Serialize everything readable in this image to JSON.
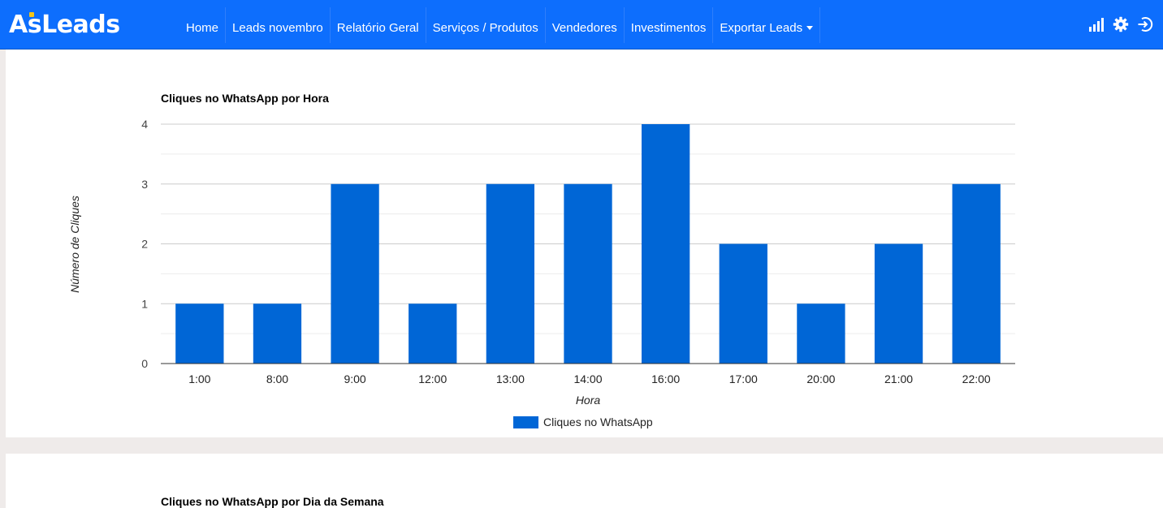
{
  "navbar": {
    "brand": "AsLeads",
    "items": [
      {
        "label": "Home"
      },
      {
        "label": "Leads novembro"
      },
      {
        "label": "Relatório Geral"
      },
      {
        "label": "Serviços / Produtos"
      },
      {
        "label": "Vendedores"
      },
      {
        "label": "Investimentos"
      },
      {
        "label": "Exportar Leads"
      }
    ],
    "icons": [
      "signal-icon",
      "gear-icon",
      "logout-icon"
    ]
  },
  "colors": {
    "navbar": "#0d6efd",
    "bar": "#0066d6",
    "page": "#efebea"
  },
  "chart_data": [
    {
      "type": "bar",
      "title": "Cliques no WhatsApp por Hora",
      "xlabel": "Hora",
      "ylabel": "Número de Cliques",
      "categories": [
        "1:00",
        "8:00",
        "9:00",
        "12:00",
        "13:00",
        "14:00",
        "16:00",
        "17:00",
        "20:00",
        "21:00",
        "22:00"
      ],
      "series": [
        {
          "name": "Cliques no WhatsApp",
          "values": [
            1,
            1,
            3,
            1,
            3,
            3,
            4,
            2,
            1,
            2,
            3
          ],
          "color": "#0066d6"
        }
      ],
      "ylim": [
        0,
        4
      ],
      "yticks": [
        0,
        1,
        2,
        3,
        4
      ],
      "grid": true,
      "legend": "bottom"
    },
    {
      "type": "bar",
      "title": "Cliques no WhatsApp por Dia da Semana"
    }
  ]
}
